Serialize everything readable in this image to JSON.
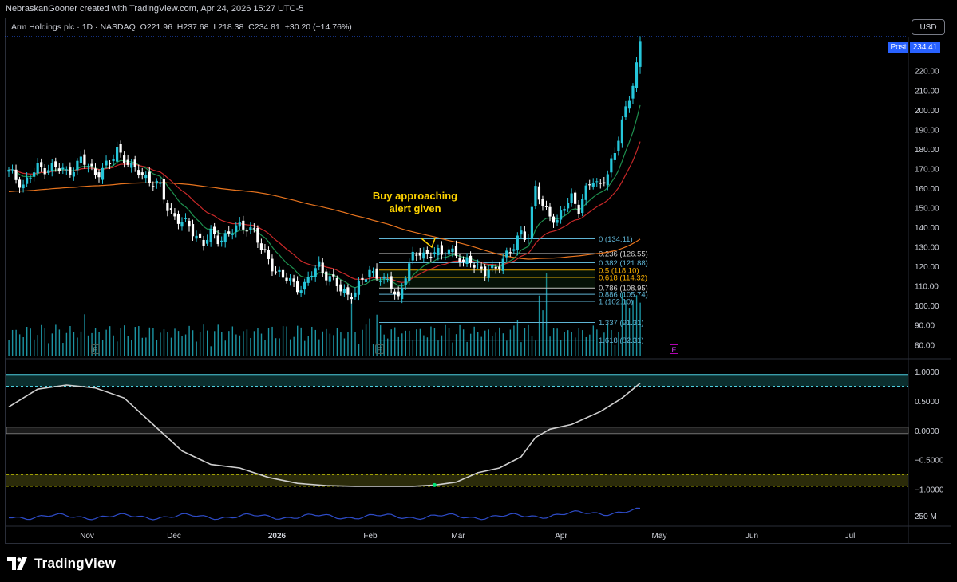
{
  "header": {
    "attribution": "NebraskanGooner created with TradingView.com, Apr 24, 2026 15:27 UTC-5"
  },
  "legend": {
    "symbol": "Arm Holdings plc · 1D · NASDAQ",
    "open_label": "O",
    "open": "221.96",
    "high_label": "H",
    "high": "237.68",
    "low_label": "L",
    "low": "218.38",
    "close_label": "C",
    "close": "234.81",
    "change": "+30.20 (+14.76%)"
  },
  "currency_button": "USD",
  "post_market": {
    "label": "Post",
    "price": "234.41"
  },
  "annotation": {
    "line1": "Buy approaching",
    "line2": "alert given"
  },
  "branding": {
    "name": "TradingView"
  },
  "earnings_badges": [
    "E",
    "E",
    "E"
  ],
  "colors": {
    "up": "#26c6da",
    "down": "#ffffff",
    "ema_short": "#1e8f4e",
    "ema_mid": "#c62828",
    "sma_long": "#e8741e",
    "oscillator": "#cfcfcf",
    "sub_line": "#2e4cc9",
    "fib_line": "#5fb4d4",
    "annotation": "#ffd400",
    "post_badge": "#2962ff"
  },
  "chart_data": {
    "type": "candlestick",
    "price_axis": {
      "ticks": [
        "220.00",
        "210.00",
        "200.00",
        "190.00",
        "180.00",
        "170.00",
        "160.00",
        "150.00",
        "140.00",
        "130.00",
        "120.00",
        "110.00",
        "100.00",
        "90.00",
        "80.00"
      ],
      "ylim": [
        74,
        237
      ]
    },
    "time_axis": {
      "labels": [
        "Nov",
        "Dec",
        "2026",
        "Feb",
        "Mar",
        "Apr",
        "May",
        "Jun",
        "Jul"
      ]
    },
    "ohlc_last": {
      "open": 221.96,
      "high": 237.68,
      "low": 218.38,
      "close": 234.81
    },
    "price_path": [
      [
        0,
        168
      ],
      [
        4,
        162
      ],
      [
        8,
        170
      ],
      [
        12,
        171
      ],
      [
        16,
        168
      ],
      [
        20,
        174
      ],
      [
        24,
        168
      ],
      [
        28,
        172
      ],
      [
        30,
        180
      ],
      [
        32,
        176
      ],
      [
        34,
        170
      ],
      [
        36,
        168
      ],
      [
        38,
        166
      ],
      [
        42,
        160
      ],
      [
        44,
        150
      ],
      [
        46,
        146
      ],
      [
        48,
        142
      ],
      [
        50,
        140
      ],
      [
        52,
        136
      ],
      [
        54,
        132
      ],
      [
        56,
        136
      ],
      [
        58,
        134
      ],
      [
        60,
        136
      ],
      [
        62,
        138
      ],
      [
        64,
        140
      ],
      [
        66,
        141
      ],
      [
        68,
        138
      ],
      [
        70,
        128
      ],
      [
        72,
        124
      ],
      [
        74,
        118
      ],
      [
        76,
        114
      ],
      [
        78,
        112
      ],
      [
        80,
        110
      ],
      [
        82,
        110
      ],
      [
        84,
        116
      ],
      [
        86,
        121
      ],
      [
        88,
        116
      ],
      [
        90,
        112
      ],
      [
        92,
        108
      ],
      [
        94,
        106
      ],
      [
        96,
        107
      ],
      [
        98,
        112
      ],
      [
        100,
        118
      ],
      [
        102,
        116
      ],
      [
        104,
        112
      ],
      [
        106,
        110
      ],
      [
        108,
        104
      ],
      [
        110,
        116
      ],
      [
        112,
        124
      ],
      [
        114,
        128
      ],
      [
        116,
        126
      ],
      [
        118,
        127
      ],
      [
        120,
        125
      ],
      [
        122,
        130
      ],
      [
        124,
        126
      ],
      [
        126,
        120
      ],
      [
        128,
        124
      ],
      [
        130,
        120
      ],
      [
        132,
        116
      ],
      [
        134,
        118
      ],
      [
        136,
        122
      ],
      [
        138,
        126
      ],
      [
        140,
        129
      ],
      [
        142,
        138
      ],
      [
        144,
        136
      ],
      [
        146,
        160
      ],
      [
        148,
        150
      ],
      [
        150,
        148
      ],
      [
        152,
        142
      ],
      [
        154,
        150
      ],
      [
        156,
        156
      ],
      [
        158,
        150
      ],
      [
        160,
        158
      ],
      [
        162,
        164
      ],
      [
        164,
        162
      ],
      [
        166,
        168
      ],
      [
        168,
        176
      ],
      [
        170,
        196
      ],
      [
        172,
        206
      ],
      [
        174,
        222
      ],
      [
        175,
        235
      ]
    ],
    "moving_averages": [
      {
        "key": "ema_short"
      },
      {
        "key": "ema_mid"
      },
      {
        "key": "sma_long"
      }
    ],
    "fibonacci": [
      {
        "label": "0 (134.11)",
        "value": 134.11
      },
      {
        "label": "0.236 (126.55)",
        "value": 126.55
      },
      {
        "label": "0.382 (121.88)",
        "value": 121.88
      },
      {
        "label": "0.5 (118.10)",
        "value": 118.1
      },
      {
        "label": "0.618 (114.32)",
        "value": 114.32
      },
      {
        "label": "0.786 (108.95)",
        "value": 108.95
      },
      {
        "label": "0.886 (105.74)",
        "value": 105.74
      },
      {
        "label": "1 (102.10)",
        "value": 102.1
      },
      {
        "label": "1.337 (91.31)",
        "value": 91.31
      },
      {
        "label": "1.618 (82.31)",
        "value": 82.31
      }
    ],
    "oscillator": {
      "ticks": [
        "1.0000",
        "0.5000",
        "0.0000",
        "−0.5000",
        "−1.0000"
      ],
      "ylim": [
        -1.25,
        1.15
      ],
      "bands": [
        0.95,
        0.75,
        0,
        -0.75,
        -0.95
      ],
      "series": [
        [
          0,
          0.4
        ],
        [
          8,
          0.7
        ],
        [
          16,
          0.77
        ],
        [
          24,
          0.72
        ],
        [
          32,
          0.55
        ],
        [
          40,
          0.1
        ],
        [
          48,
          -0.35
        ],
        [
          56,
          -0.58
        ],
        [
          64,
          -0.64
        ],
        [
          72,
          -0.8
        ],
        [
          80,
          -0.9
        ],
        [
          88,
          -0.94
        ],
        [
          96,
          -0.95
        ],
        [
          104,
          -0.95
        ],
        [
          112,
          -0.95
        ],
        [
          118,
          -0.93
        ],
        [
          124,
          -0.88
        ],
        [
          130,
          -0.72
        ],
        [
          136,
          -0.64
        ],
        [
          142,
          -0.45
        ],
        [
          146,
          -0.12
        ],
        [
          150,
          0.02
        ],
        [
          156,
          0.1
        ],
        [
          164,
          0.32
        ],
        [
          170,
          0.55
        ],
        [
          175,
          0.8
        ]
      ]
    },
    "sub_indicator": {
      "label": "250 M"
    }
  }
}
